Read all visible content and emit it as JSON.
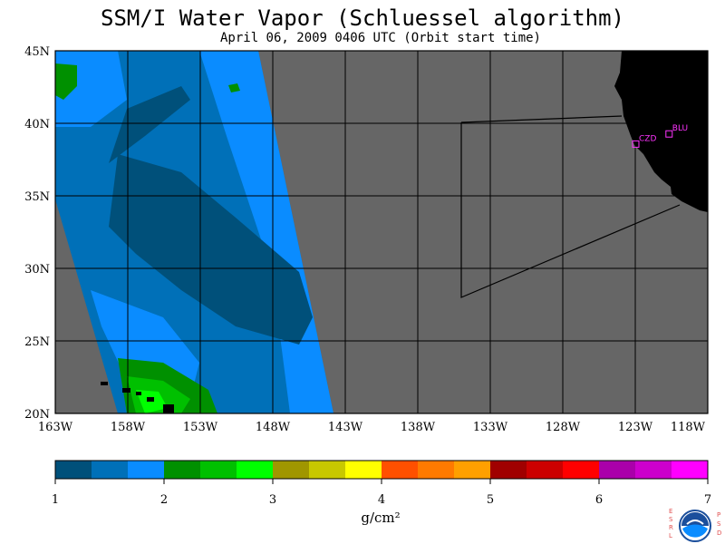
{
  "title": "SSM/I Water Vapor (Schluessel algorithm)",
  "subtitle": "April 06, 2009  0406 UTC  (Orbit start time)",
  "map": {
    "lat_labels": [
      "45N",
      "40N",
      "35N",
      "30N",
      "25N",
      "20N"
    ],
    "lon_labels": [
      "163W",
      "158W",
      "153W",
      "148W",
      "143W",
      "138W",
      "133W",
      "128W",
      "123W",
      "118W"
    ],
    "stations": [
      {
        "name": "CZD",
        "lon": -123.0,
        "lat": 38.6
      },
      {
        "name": "BLU",
        "lon": -120.7,
        "lat": 39.3
      }
    ],
    "colors": {
      "nodata": "#666666",
      "land": "#000000",
      "grid": "#000000"
    }
  },
  "colorbar": {
    "ticks": [
      "1",
      "2",
      "3",
      "4",
      "5",
      "6",
      "7"
    ],
    "unit": "g/cm²",
    "colors": [
      "#00507a",
      "#0070b8",
      "#0a8cff",
      "#009000",
      "#00c000",
      "#00ff00",
      "#a09600",
      "#c8c800",
      "#ffff00",
      "#ff5000",
      "#ff7a00",
      "#ffa000",
      "#a00000",
      "#cc0000",
      "#ff0000",
      "#aa00aa",
      "#cc00cc",
      "#ff00ff"
    ]
  },
  "logo": {
    "left_letters": "ESRL",
    "right_letters": "PSD",
    "center": "NOAA"
  }
}
